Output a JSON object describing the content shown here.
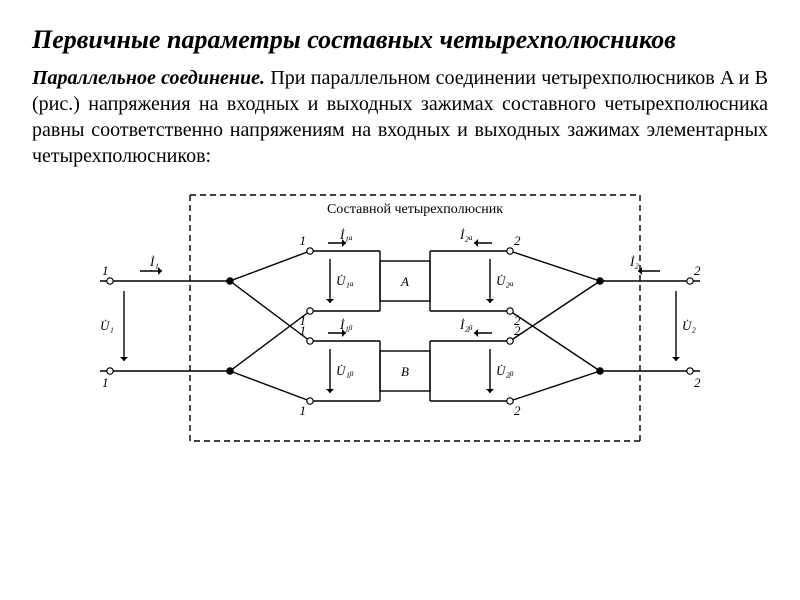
{
  "title": "Первичные параметры составных четырехполюсников",
  "paragraph": {
    "lead": "Параллельное соединение.",
    "rest": " При параллельном соединении четырехполюсников A и B (рис.) напряжения на входных и выходных зажимах составного четырехполюсника равны соответственно напряжениям на входных и выходных зажимах элементарных четырехполюсников:"
  },
  "diagram": {
    "caption": "Составной четырехполюсник",
    "box_a": "A",
    "box_b": "B",
    "labels": {
      "I1": "İ₁",
      "U1": "U̇₁",
      "I2": "İ₂",
      "U2": "U̇₂",
      "I1A": "İ₁ₐ",
      "U1A": "U̇₁ₐ",
      "I2A": "İ₂ₐ",
      "U2A": "U̇₂ₐ",
      "I1B": "İ₁ᵦ",
      "U1B": "U̇₁ᵦ",
      "I2B": "İ₂ᵦ",
      "U2B": "U̇₂ᵦ",
      "t1": "1",
      "t2": "2"
    },
    "colors": {
      "stroke": "#000000",
      "bg": "#ffffff",
      "text": "#000000"
    },
    "fontsize": 13,
    "stroke_width": 1.4
  }
}
